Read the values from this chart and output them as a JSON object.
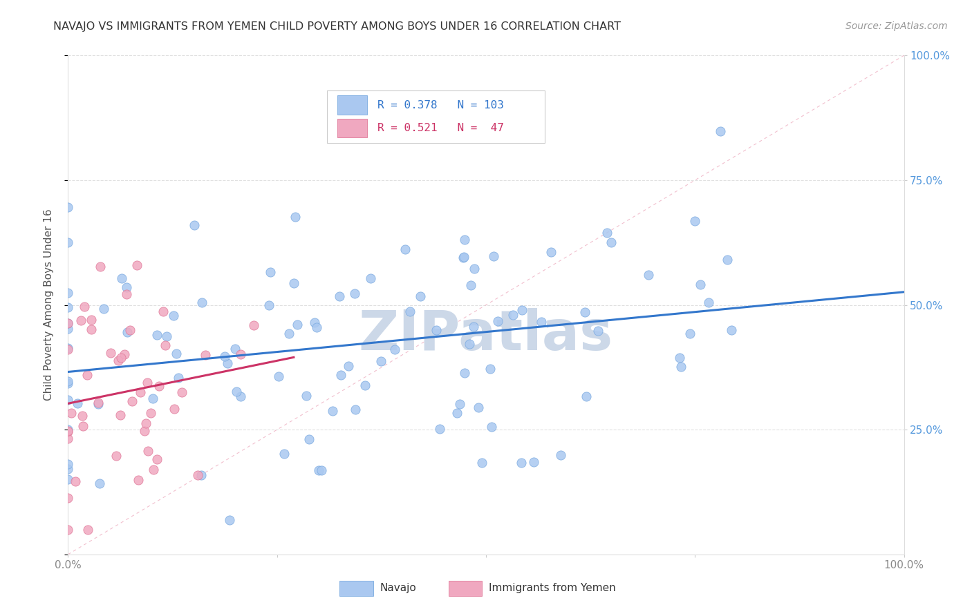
{
  "title": "NAVAJO VS IMMIGRANTS FROM YEMEN CHILD POVERTY AMONG BOYS UNDER 16 CORRELATION CHART",
  "source": "Source: ZipAtlas.com",
  "ylabel": "Child Poverty Among Boys Under 16",
  "navajo_R": 0.378,
  "navajo_N": 103,
  "yemen_R": 0.521,
  "yemen_N": 47,
  "navajo_color": "#aac8f0",
  "navajo_edge_color": "#7aaae0",
  "yemen_color": "#f0a8c0",
  "yemen_edge_color": "#e07898",
  "navajo_line_color": "#3377cc",
  "yemen_line_color": "#cc3366",
  "diagonal_color": "#f0b8c8",
  "background_color": "#ffffff",
  "watermark": "ZIPatlas",
  "watermark_color": "#ccd8e8",
  "legend_navajo": "Navajo",
  "legend_yemen": "Immigrants from Yemen",
  "grid_color": "#e0e0e0",
  "title_color": "#333333",
  "source_color": "#999999",
  "tick_color": "#888888",
  "ylabel_color": "#555555",
  "right_tick_color": "#5599dd"
}
